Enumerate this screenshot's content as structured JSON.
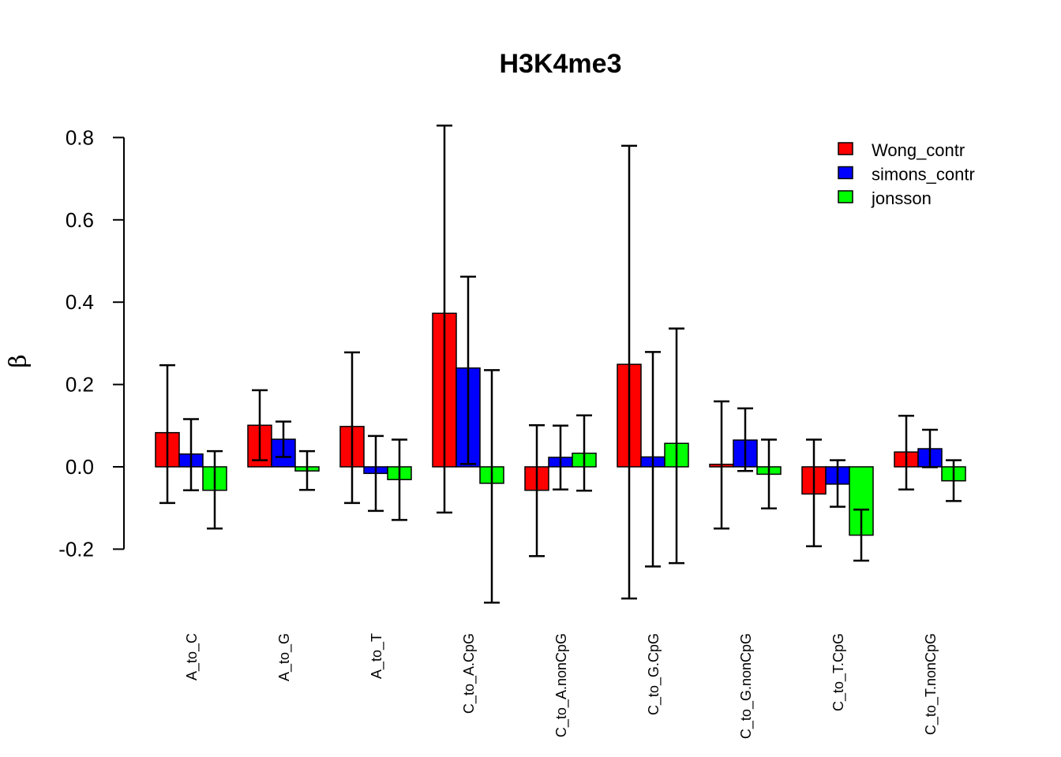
{
  "chart_data": {
    "type": "bar",
    "title": "H3K4me3",
    "ylabel": "β",
    "xlabel": "",
    "ylim": [
      -0.2,
      0.8
    ],
    "yticks": [
      "-0.2",
      "0.0",
      "0.2",
      "0.4",
      "0.6",
      "0.8"
    ],
    "grid": false,
    "legend_position": "top-right",
    "categories": [
      "A_to_C",
      "A_to_G",
      "A_to_T",
      "C_to_A.CpG",
      "C_to_A.nonCpG",
      "C_to_G.CpG",
      "C_to_G.nonCpG",
      "C_to_T.CpG",
      "C_to_T.nonCpG"
    ],
    "series": [
      {
        "name": "Wong_contr",
        "color": "#ff0000",
        "values": [
          0.083,
          0.101,
          0.098,
          0.373,
          -0.057,
          0.249,
          0.006,
          -0.066,
          0.036
        ],
        "lower": [
          -0.088,
          0.016,
          -0.088,
          -0.111,
          -0.217,
          -0.32,
          -0.15,
          -0.193,
          -0.055
        ],
        "upper": [
          0.247,
          0.186,
          0.278,
          0.829,
          0.101,
          0.78,
          0.159,
          0.066,
          0.124
        ]
      },
      {
        "name": "simons_contr",
        "color": "#0000ff",
        "values": [
          0.031,
          0.067,
          -0.016,
          0.24,
          0.023,
          0.024,
          0.065,
          -0.042,
          0.044
        ],
        "lower": [
          -0.057,
          0.024,
          -0.107,
          0.007,
          -0.055,
          -0.242,
          -0.01,
          -0.097,
          -0.001
        ],
        "upper": [
          0.116,
          0.11,
          0.075,
          0.462,
          0.1,
          0.279,
          0.142,
          0.016,
          0.09
        ]
      },
      {
        "name": "jonsson",
        "color": "#00ff00",
        "values": [
          -0.057,
          -0.01,
          -0.031,
          -0.04,
          0.033,
          0.057,
          -0.018,
          -0.166,
          -0.034
        ],
        "lower": [
          -0.15,
          -0.056,
          -0.129,
          -0.33,
          -0.058,
          -0.234,
          -0.101,
          -0.228,
          -0.083
        ],
        "upper": [
          0.038,
          0.038,
          0.066,
          0.235,
          0.125,
          0.336,
          0.066,
          -0.104,
          0.016
        ]
      }
    ]
  }
}
